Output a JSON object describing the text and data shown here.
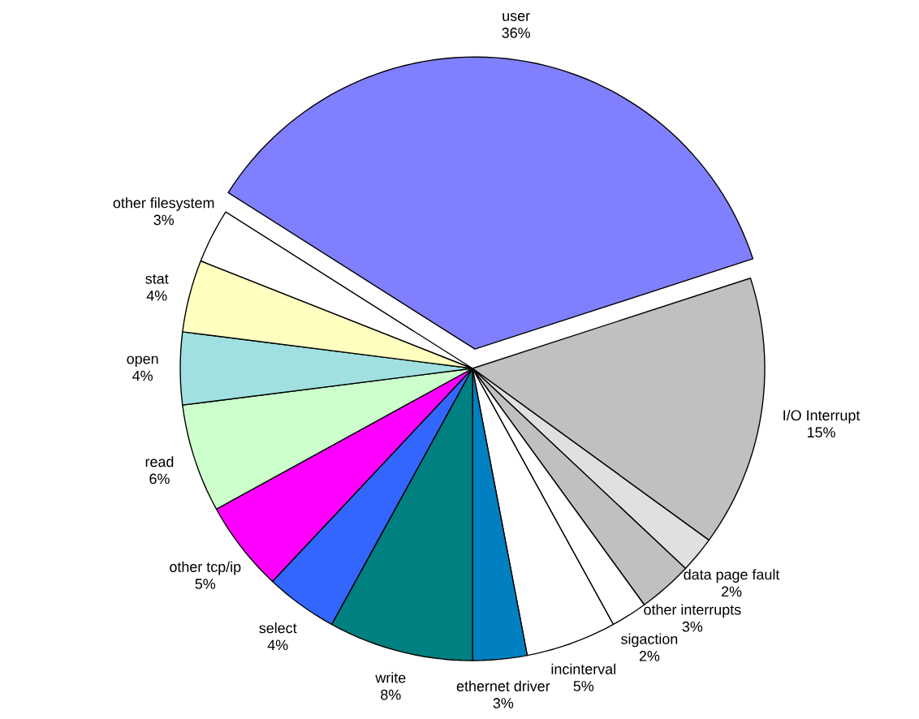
{
  "chart_data": {
    "type": "pie",
    "categories": [
      "user",
      "I/O Interrupt",
      "data page fault",
      "other interrupts",
      "sigaction",
      "incinterval",
      "ethernet driver",
      "write",
      "select",
      "other tcp/ip",
      "read",
      "open",
      "stat",
      "other filesystem"
    ],
    "values": [
      36,
      15,
      2,
      3,
      2,
      5,
      3,
      8,
      4,
      5,
      6,
      4,
      4,
      3
    ],
    "value_labels": [
      "36%",
      "15%",
      "2%",
      "3%",
      "2%",
      "5%",
      "3%",
      "8%",
      "4%",
      "5%",
      "6%",
      "4%",
      "4%",
      "3%"
    ],
    "colors": [
      "#8080ff",
      "#c0c0c0",
      "#e0e0e0",
      "#c0c0c0",
      "#ffffff",
      "#ffffff",
      "#0080c0",
      "#008080",
      "#3366ff",
      "#ff00ff",
      "#ccffcc",
      "#a0e0e0",
      "#ffffc0",
      "#ffffff"
    ]
  }
}
